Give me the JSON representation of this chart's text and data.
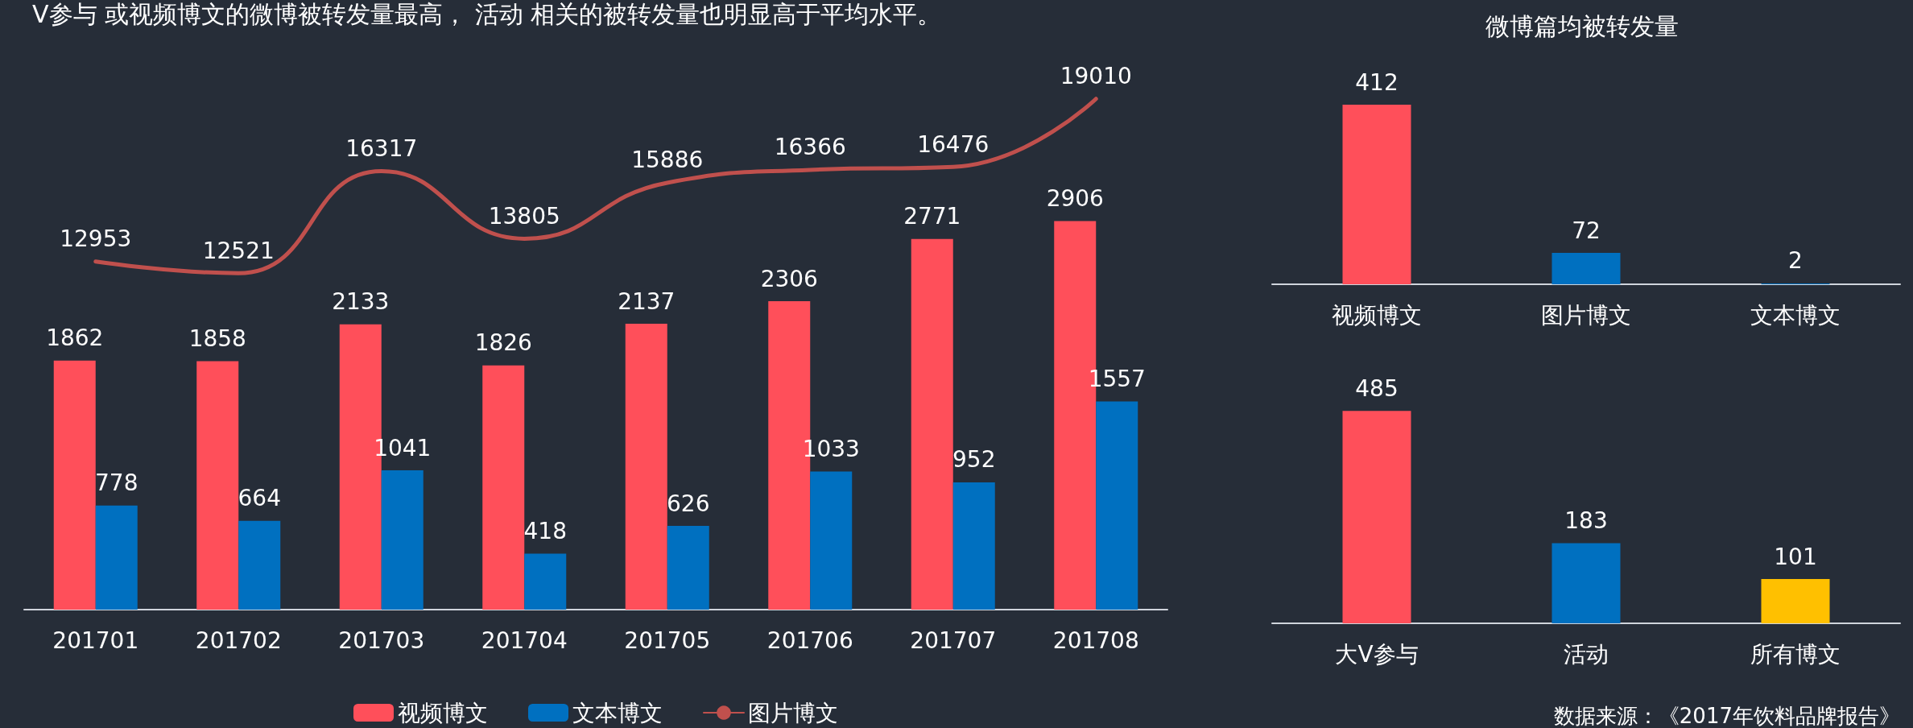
{
  "chart_data": [
    {
      "type": "bar",
      "categories": [
        "201701",
        "201702",
        "201703",
        "201704",
        "201705",
        "201706",
        "201707",
        "201708"
      ],
      "series": [
        {
          "name": "视频博文",
          "color": "#ff4f5a",
          "values": [
            1862,
            1858,
            2133,
            1826,
            2137,
            2306,
            2771,
            2906
          ]
        },
        {
          "name": "文本博文",
          "color": "#0070c0",
          "values": [
            778,
            664,
            1041,
            418,
            626,
            1033,
            952,
            1557
          ]
        },
        {
          "name": "图片博文",
          "type": "line",
          "axis": "y2",
          "color": "#c0504d",
          "values": [
            12953,
            12521,
            16317,
            13805,
            15886,
            16366,
            16476,
            19010
          ]
        }
      ],
      "data_labels": true,
      "tick_labels": "x",
      "legend": "bottom",
      "marker": "none",
      "line_style": "solid",
      "annotations": [
        "V参与 或视频博文的微博被转发量最高， 活动 相关的被转发量也明显高于平均水平。"
      ]
    },
    {
      "type": "bar",
      "title": "微博篇均被转发量",
      "categories": [
        "视频博文",
        "图片博文",
        "文本博文"
      ],
      "values": [
        412,
        72,
        2
      ],
      "colors": [
        "#ff4f5a",
        "#0070c0",
        "#0070c0"
      ],
      "data_labels": true,
      "tick_labels": "x",
      "legend": false
    },
    {
      "type": "bar",
      "categories": [
        "大V参与",
        "活动",
        "所有博文"
      ],
      "values": [
        485,
        183,
        101
      ],
      "colors": [
        "#ff4f5a",
        "#0070c0",
        "#ffc000"
      ],
      "data_labels": true,
      "tick_labels": "x",
      "legend": false,
      "annotations": [
        "数据来源：《2017年饮料品牌报告》"
      ]
    }
  ]
}
